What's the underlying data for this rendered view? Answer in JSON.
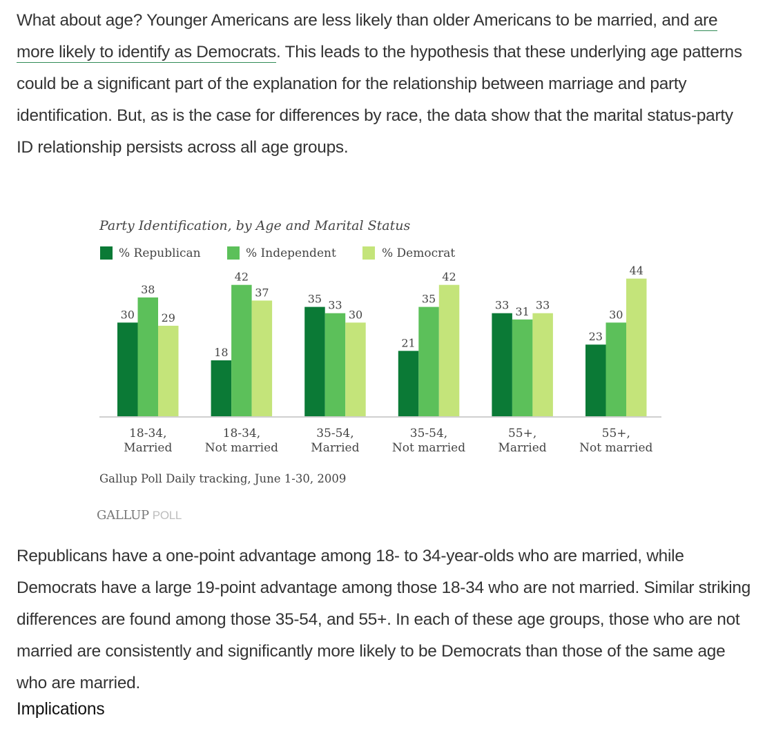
{
  "article": {
    "para1": {
      "before": "What about age? Younger Americans are less likely than older Americans to be married, and ",
      "link": "are more likely to identify as Democrats",
      "after": ". This leads to the hypothesis that these underlying age patterns could be a significant part of the explanation for the relationship between marriage and party identification. But, as is the case for differences by race, the data show that the marital status-party ID relationship persists across all age groups."
    },
    "para2": "Republicans have a one-point advantage among 18- to 34-year-olds who are married, while Democrats have a large 19-point advantage among those 18-34 who are not married. Similar striking differences are found among those 35-54, and 55+. In each of these age groups, those who are not married are consistently and significantly more likely to be Democrats than those of the same age who are married.",
    "heading": "Implications"
  },
  "chart_data": {
    "type": "bar",
    "title": "Party Identification, by Age and Marital Status",
    "categories": [
      [
        "18-34,",
        "Married"
      ],
      [
        "18-34,",
        "Not married"
      ],
      [
        "35-54,",
        "Married"
      ],
      [
        "35-54,",
        "Not married"
      ],
      [
        "55+,",
        "Married"
      ],
      [
        "55+,",
        "Not married"
      ]
    ],
    "series": [
      {
        "name": "% Republican",
        "color": "#0b7a36",
        "values": [
          30,
          18,
          35,
          21,
          33,
          23
        ]
      },
      {
        "name": "% Independent",
        "color": "#5cc05a",
        "values": [
          38,
          42,
          33,
          35,
          31,
          30
        ]
      },
      {
        "name": "% Democrat",
        "color": "#c4e47a",
        "values": [
          29,
          37,
          30,
          42,
          33,
          44
        ]
      }
    ],
    "ylim": [
      0,
      45
    ],
    "xlabel": "",
    "ylabel": "",
    "legend": "top-left",
    "grid": false,
    "source": "Gallup Poll Daily tracking, June 1-30, 2009",
    "logo": {
      "strong": "GALLUP",
      "light": "POLL"
    }
  }
}
